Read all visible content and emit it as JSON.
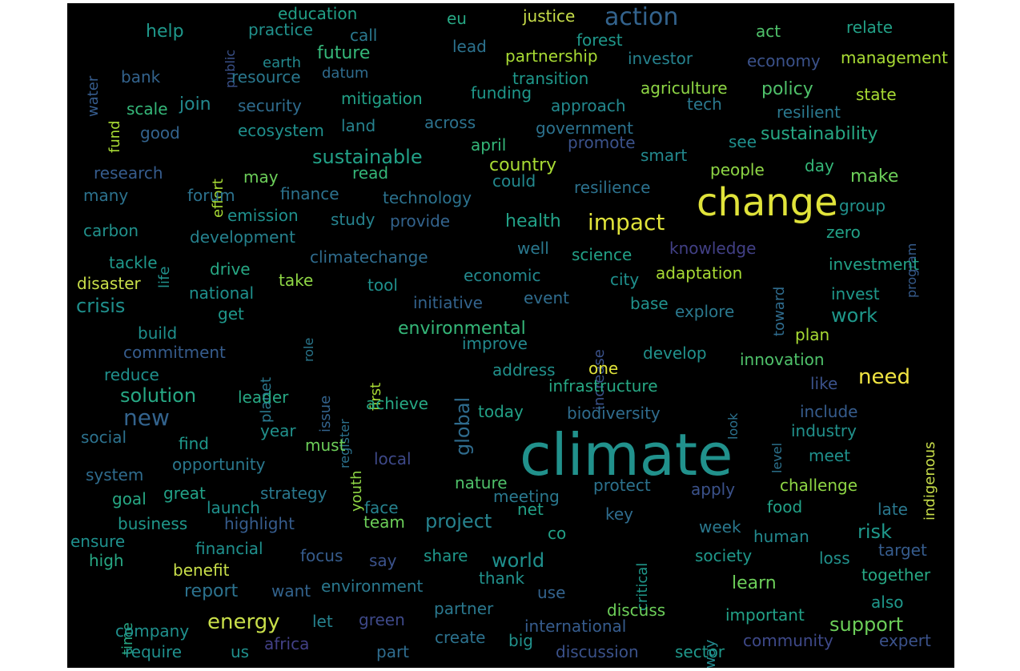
{
  "palette": [
    "#f0e442",
    "#e0e33a",
    "#c9df4a",
    "#a8db34",
    "#8ed645",
    "#6cce59",
    "#4fc16a",
    "#35b779",
    "#27a884",
    "#22a187",
    "#1f988b",
    "#1f908d",
    "#21918c",
    "#23898e",
    "#26828e",
    "#2a788e",
    "#2c728e",
    "#2f6c8e",
    "#33638d",
    "#365c8d",
    "#3b528b",
    "#3e4989",
    "#424086",
    "#453781",
    "#46307e"
  ],
  "words": [
    {
      "t": "climate",
      "c": 12
    },
    {
      "t": "change",
      "c": 1
    },
    {
      "t": "action",
      "c": 18
    },
    {
      "t": "help",
      "c": 10
    },
    {
      "t": "education",
      "c": 9
    },
    {
      "t": "eu",
      "c": 8
    },
    {
      "t": "justice",
      "c": 2
    },
    {
      "t": "act",
      "c": 6
    },
    {
      "t": "relate",
      "c": 9
    },
    {
      "t": "water",
      "c": 19
    },
    {
      "t": "public",
      "c": 20
    },
    {
      "t": "practice",
      "c": 12
    },
    {
      "t": "call",
      "c": 15
    },
    {
      "t": "lead",
      "c": 16
    },
    {
      "t": "forest",
      "c": 10
    },
    {
      "t": "future",
      "c": 7
    },
    {
      "t": "earth",
      "c": 13
    },
    {
      "t": "partnership",
      "c": 3
    },
    {
      "t": "investor",
      "c": 14
    },
    {
      "t": "economy",
      "c": 20
    },
    {
      "t": "management",
      "c": 3
    },
    {
      "t": "bank",
      "c": 18
    },
    {
      "t": "fund",
      "c": 3
    },
    {
      "t": "resource",
      "c": 15
    },
    {
      "t": "datum",
      "c": 17
    },
    {
      "t": "transition",
      "c": 10
    },
    {
      "t": "agriculture",
      "c": 4
    },
    {
      "t": "policy",
      "c": 6
    },
    {
      "t": "state",
      "c": 3
    },
    {
      "t": "scale",
      "c": 7
    },
    {
      "t": "join",
      "c": 13
    },
    {
      "t": "security",
      "c": 17
    },
    {
      "t": "mitigation",
      "c": 9
    },
    {
      "t": "funding",
      "c": 10
    },
    {
      "t": "approach",
      "c": 13
    },
    {
      "t": "tech",
      "c": 15
    },
    {
      "t": "resilient",
      "c": 15
    },
    {
      "t": "good",
      "c": 18
    },
    {
      "t": "ecosystem",
      "c": 11
    },
    {
      "t": "land",
      "c": 14
    },
    {
      "t": "across",
      "c": 16
    },
    {
      "t": "government",
      "c": 16
    },
    {
      "t": "sustainability",
      "c": 8
    },
    {
      "t": "effort",
      "c": 3
    },
    {
      "t": "sustainable",
      "c": 9
    },
    {
      "t": "april",
      "c": 7
    },
    {
      "t": "promote",
      "c": 20
    },
    {
      "t": "smart",
      "c": 13
    },
    {
      "t": "see",
      "c": 11
    },
    {
      "t": "research",
      "c": 19
    },
    {
      "t": "may",
      "c": 5
    },
    {
      "t": "read",
      "c": 7
    },
    {
      "t": "country",
      "c": 3
    },
    {
      "t": "people",
      "c": 4
    },
    {
      "t": "day",
      "c": 7
    },
    {
      "t": "make",
      "c": 5
    },
    {
      "t": "many",
      "c": 16
    },
    {
      "t": "forum",
      "c": 16
    },
    {
      "t": "finance",
      "c": 16
    },
    {
      "t": "technology",
      "c": 16
    },
    {
      "t": "could",
      "c": 13
    },
    {
      "t": "resilience",
      "c": 16
    },
    {
      "t": "group",
      "c": 12
    },
    {
      "t": "emission",
      "c": 11
    },
    {
      "t": "study",
      "c": 14
    },
    {
      "t": "provide",
      "c": 18
    },
    {
      "t": "health",
      "c": 9
    },
    {
      "t": "impact",
      "c": 1
    },
    {
      "t": "zero",
      "c": 9
    },
    {
      "t": "program",
      "c": 19
    },
    {
      "t": "carbon",
      "c": 12
    },
    {
      "t": "development",
      "c": 14
    },
    {
      "t": "well",
      "c": 15
    },
    {
      "t": "knowledge",
      "c": 22
    },
    {
      "t": "life",
      "c": 12
    },
    {
      "t": "toward",
      "c": 17
    },
    {
      "t": "tackle",
      "c": 10
    },
    {
      "t": "drive",
      "c": 8
    },
    {
      "t": "climatechange",
      "c": 17
    },
    {
      "t": "science",
      "c": 9
    },
    {
      "t": "investment",
      "c": 9
    },
    {
      "t": "disaster",
      "c": 2
    },
    {
      "t": "national",
      "c": 11
    },
    {
      "t": "take",
      "c": 4
    },
    {
      "t": "tool",
      "c": 11
    },
    {
      "t": "economic",
      "c": 13
    },
    {
      "t": "city",
      "c": 11
    },
    {
      "t": "adaptation",
      "c": 3
    },
    {
      "t": "crisis",
      "c": 11
    },
    {
      "t": "initiative",
      "c": 18
    },
    {
      "t": "event",
      "c": 17
    },
    {
      "t": "base",
      "c": 12
    },
    {
      "t": "explore",
      "c": 15
    },
    {
      "t": "invest",
      "c": 10
    },
    {
      "t": "work",
      "c": 10
    },
    {
      "t": "get",
      "c": 10
    },
    {
      "t": "role",
      "c": 15
    },
    {
      "t": "environmental",
      "c": 7
    },
    {
      "t": "increase",
      "c": 20
    },
    {
      "t": "build",
      "c": 11
    },
    {
      "t": "commitment",
      "c": 19
    },
    {
      "t": "improve",
      "c": 13
    },
    {
      "t": "develop",
      "c": 12
    },
    {
      "t": "plan",
      "c": 3
    },
    {
      "t": "innovation",
      "c": 6
    },
    {
      "t": "planet",
      "c": 15
    },
    {
      "t": "issue",
      "c": 18
    },
    {
      "t": "first",
      "c": 3
    },
    {
      "t": "indigenous",
      "c": 2
    },
    {
      "t": "reduce",
      "c": 11
    },
    {
      "t": "global",
      "c": 17
    },
    {
      "t": "address",
      "c": 12
    },
    {
      "t": "one",
      "c": 1
    },
    {
      "t": "need",
      "c": 0
    },
    {
      "t": "infrastructure",
      "c": 8
    },
    {
      "t": "like",
      "c": 20
    },
    {
      "t": "solution",
      "c": 8
    },
    {
      "t": "leader",
      "c": 8
    },
    {
      "t": "register",
      "c": 16
    },
    {
      "t": "achieve",
      "c": 8
    },
    {
      "t": "look",
      "c": 16
    },
    {
      "t": "new",
      "c": 18
    },
    {
      "t": "today",
      "c": 9
    },
    {
      "t": "biodiversity",
      "c": 17
    },
    {
      "t": "level",
      "c": 16
    },
    {
      "t": "include",
      "c": 19
    },
    {
      "t": "year",
      "c": 12
    },
    {
      "t": "industry",
      "c": 12
    },
    {
      "t": "social",
      "c": 16
    },
    {
      "t": "find",
      "c": 10
    },
    {
      "t": "must",
      "c": 5
    },
    {
      "t": "youth",
      "c": 4
    },
    {
      "t": "local",
      "c": 21
    },
    {
      "t": "meet",
      "c": 11
    },
    {
      "t": "system",
      "c": 17
    },
    {
      "t": "opportunity",
      "c": 15
    },
    {
      "t": "challenge",
      "c": 4
    },
    {
      "t": "nature",
      "c": 6
    },
    {
      "t": "protect",
      "c": 16
    },
    {
      "t": "apply",
      "c": 20
    },
    {
      "t": "goal",
      "c": 8
    },
    {
      "t": "great",
      "c": 9
    },
    {
      "t": "strategy",
      "c": 15
    },
    {
      "t": "meeting",
      "c": 15
    },
    {
      "t": "launch",
      "c": 11
    },
    {
      "t": "face",
      "c": 14
    },
    {
      "t": "net",
      "c": 9
    },
    {
      "t": "key",
      "c": 17
    },
    {
      "t": "food",
      "c": 9
    },
    {
      "t": "late",
      "c": 15
    },
    {
      "t": "business",
      "c": 10
    },
    {
      "t": "highlight",
      "c": 19
    },
    {
      "t": "team",
      "c": 5
    },
    {
      "t": "project",
      "c": 14
    },
    {
      "t": "co",
      "c": 9
    },
    {
      "t": "week",
      "c": 15
    },
    {
      "t": "risk",
      "c": 10
    },
    {
      "t": "ensure",
      "c": 11
    },
    {
      "t": "critical",
      "c": 10
    },
    {
      "t": "human",
      "c": 13
    },
    {
      "t": "financial",
      "c": 11
    },
    {
      "t": "society",
      "c": 10
    },
    {
      "t": "target",
      "c": 19
    },
    {
      "t": "high",
      "c": 8
    },
    {
      "t": "focus",
      "c": 19
    },
    {
      "t": "say",
      "c": 20
    },
    {
      "t": "share",
      "c": 10
    },
    {
      "t": "world",
      "c": 11
    },
    {
      "t": "loss",
      "c": 12
    },
    {
      "t": "benefit",
      "c": 2
    },
    {
      "t": "thank",
      "c": 12
    },
    {
      "t": "learn",
      "c": 5
    },
    {
      "t": "together",
      "c": 8
    },
    {
      "t": "report",
      "c": 16
    },
    {
      "t": "want",
      "c": 18
    },
    {
      "t": "environment",
      "c": 15
    },
    {
      "t": "use",
      "c": 18
    },
    {
      "t": "time",
      "c": 8
    },
    {
      "t": "also",
      "c": 10
    },
    {
      "t": "energy",
      "c": 2
    },
    {
      "t": "discuss",
      "c": 5
    },
    {
      "t": "let",
      "c": 14
    },
    {
      "t": "green",
      "c": 21
    },
    {
      "t": "partner",
      "c": 15
    },
    {
      "t": "way",
      "c": 13
    },
    {
      "t": "important",
      "c": 9
    },
    {
      "t": "support",
      "c": 5
    },
    {
      "t": "company",
      "c": 11
    },
    {
      "t": "international",
      "c": 19
    },
    {
      "t": "require",
      "c": 11
    },
    {
      "t": "us",
      "c": 11
    },
    {
      "t": "africa",
      "c": 22
    },
    {
      "t": "part",
      "c": 17
    },
    {
      "t": "create",
      "c": 16
    },
    {
      "t": "big",
      "c": 12
    },
    {
      "t": "discussion",
      "c": 20
    },
    {
      "t": "sector",
      "c": 10
    },
    {
      "t": "community",
      "c": 21
    },
    {
      "t": "expert",
      "c": 20
    }
  ]
}
